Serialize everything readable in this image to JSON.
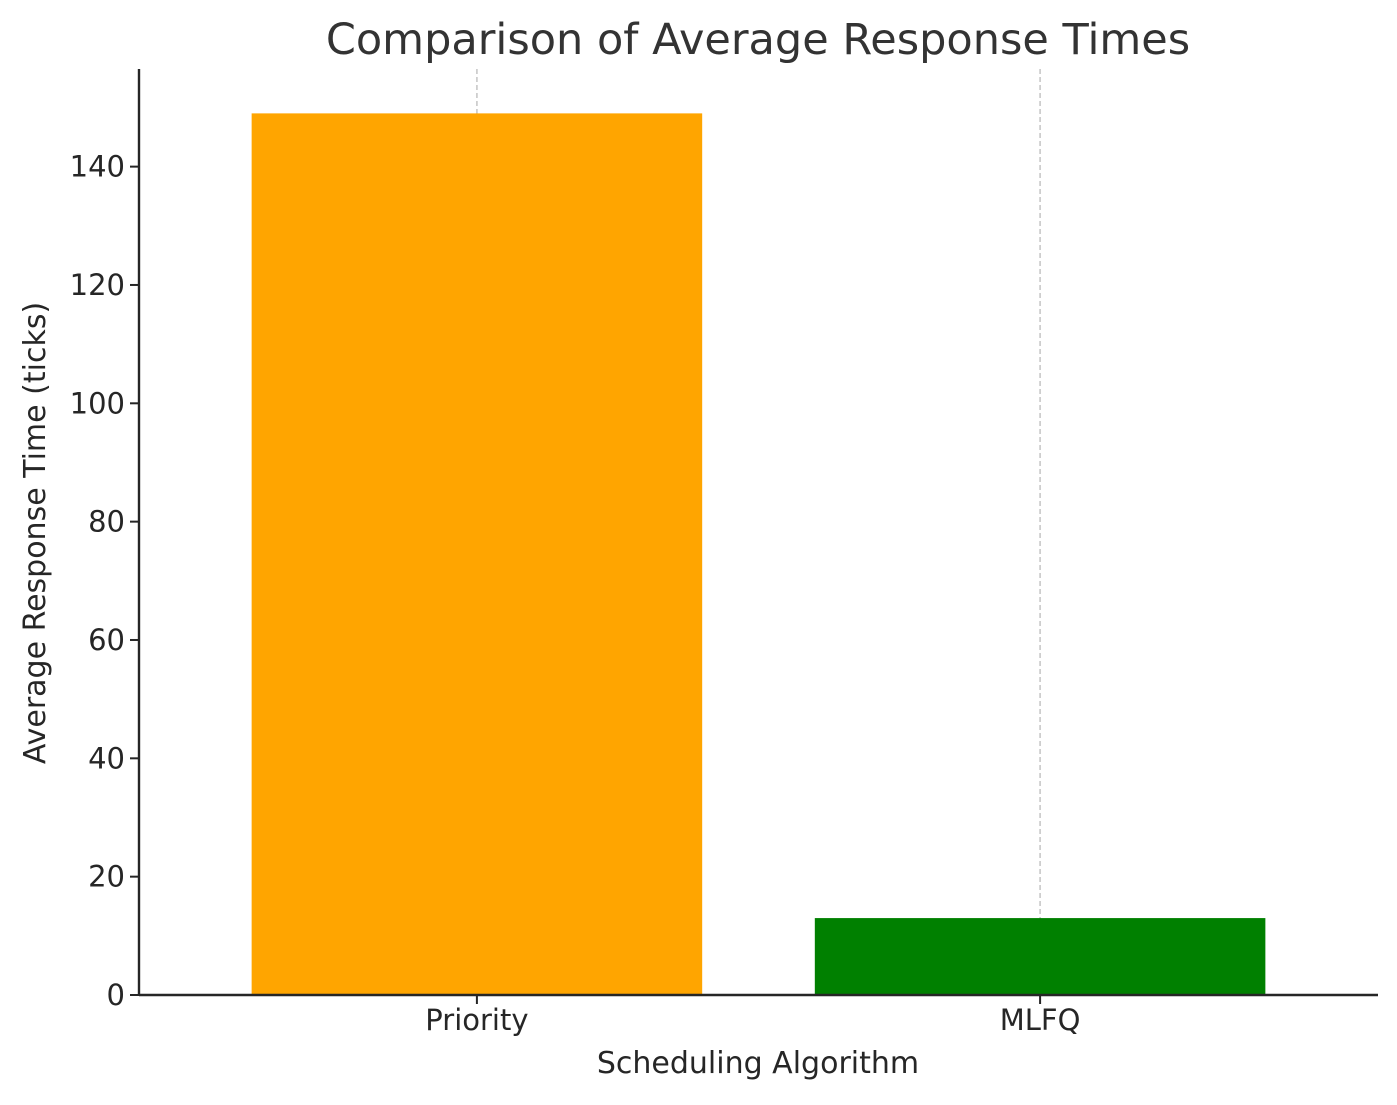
{
  "chart_data": {
    "type": "bar",
    "title": "Comparison of Average Response Times",
    "xlabel": "Scheduling Algorithm",
    "ylabel": "Average Response Time (ticks)",
    "categories": [
      "Priority",
      "MLFQ"
    ],
    "values": [
      149,
      13
    ],
    "colors": [
      "#ffa500",
      "#008000"
    ],
    "ylim": [
      0,
      156.5
    ],
    "yticks": [
      0,
      20,
      40,
      60,
      80,
      100,
      120,
      140
    ],
    "grid": {
      "x": true,
      "y": false,
      "style": "dashed",
      "color": "#c8c8c8"
    },
    "spines": {
      "top": false,
      "right": false,
      "left": true,
      "bottom": true
    },
    "axis_color": "#262626"
  }
}
